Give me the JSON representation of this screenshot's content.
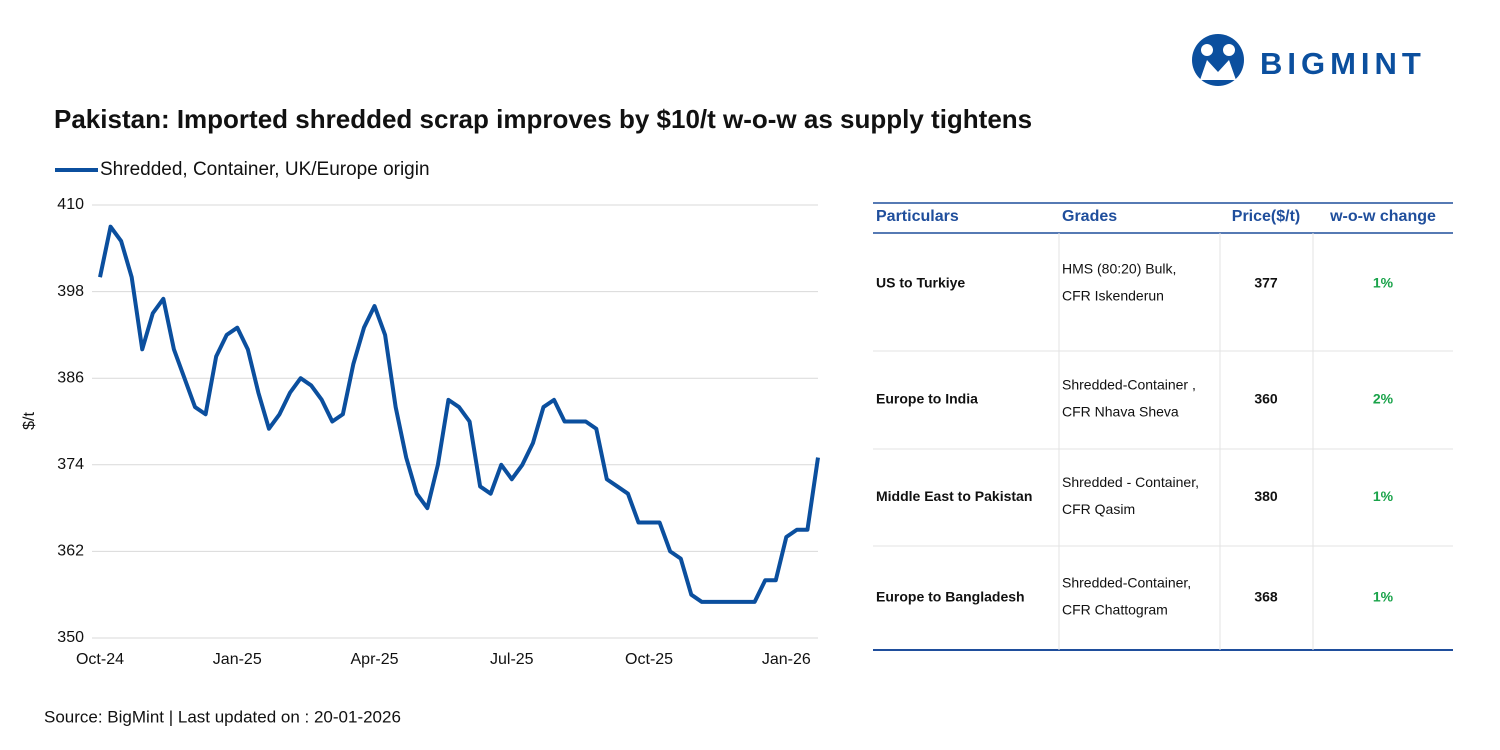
{
  "logo": "BIGMINT",
  "title": "Pakistan: Imported shredded scrap improves by $10/t w-o-w as supply tightens",
  "chart_data": {
    "type": "line",
    "y_label": "$/t",
    "categories": [
      "Oct-24",
      null,
      null,
      null,
      null,
      null,
      null,
      null,
      null,
      null,
      null,
      null,
      null,
      "Jan-25",
      null,
      null,
      null,
      null,
      null,
      null,
      null,
      null,
      null,
      null,
      null,
      null,
      "Apr-25",
      null,
      null,
      null,
      null,
      null,
      null,
      null,
      null,
      null,
      null,
      null,
      null,
      "Jul-25",
      null,
      null,
      null,
      null,
      null,
      null,
      null,
      null,
      null,
      null,
      null,
      null,
      "Oct-25",
      null,
      null,
      null,
      null,
      null,
      null,
      null,
      null,
      null,
      null,
      null,
      null,
      "Jan-26",
      null,
      null,
      null
    ],
    "series": [
      {
        "name": "Shredded, Container, UK/Europe origin",
        "color": "#0b4f9e",
        "values": [
          400,
          407,
          405,
          400,
          390,
          395,
          397,
          390,
          386,
          382,
          381,
          389,
          392,
          393,
          390,
          384,
          379,
          381,
          384,
          386,
          385,
          383,
          380,
          381,
          388,
          393,
          396,
          392,
          382,
          375,
          370,
          368,
          374,
          383,
          382,
          380,
          371,
          370,
          374,
          372,
          374,
          377,
          382,
          383,
          380,
          380,
          380,
          379,
          372,
          371,
          370,
          366,
          366,
          366,
          362,
          361,
          356,
          355,
          355,
          355,
          355,
          355,
          355,
          358,
          358,
          364,
          365,
          365,
          375
        ]
      }
    ],
    "ylim": [
      350,
      410
    ],
    "yticks": [
      350,
      362,
      374,
      386,
      398,
      410
    ],
    "grid": true
  },
  "table": {
    "header": [
      "Particulars",
      "Grades",
      "Price($/t)",
      "w-o-w change"
    ],
    "rows": [
      [
        "US to Turkiye",
        [
          "HMS (80:20) Bulk,",
          "CFR Iskenderun"
        ],
        377,
        "1%"
      ],
      [
        "Europe to India",
        [
          "Shredded-Container ,",
          "CFR Nhava Sheva"
        ],
        360,
        "2%"
      ],
      [
        "Middle East to Pakistan",
        [
          "Shredded - Container,",
          "CFR Qasim"
        ],
        380,
        "1%"
      ],
      [
        "Europe to Bangladesh",
        [
          "Shredded-Container,",
          "CFR Chattogram"
        ],
        368,
        "1%"
      ]
    ]
  },
  "source": "Source: BigMint | Last updated on : 20-01-2026"
}
